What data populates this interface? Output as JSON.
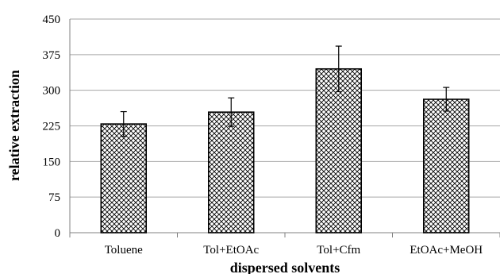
{
  "chart_data": {
    "type": "bar",
    "categories": [
      "Toluene",
      "Tol+EtOAc",
      "Tol+Cfm",
      "EtOAc+MeOH"
    ],
    "series": [
      {
        "values": [
          229,
          254,
          345,
          281
        ],
        "error": [
          26,
          30,
          48,
          25
        ]
      }
    ],
    "xlabel": "dispersed solvents",
    "ylabel": "relative extraction",
    "ylim": [
      0,
      450
    ],
    "yticks": [
      0,
      75,
      150,
      225,
      300,
      375,
      450
    ],
    "grid": true,
    "legend": "none",
    "bar_fill": "crosshatch",
    "colors": {
      "bar_stroke": "#000000",
      "grid": "#a6a6a6",
      "axis": "#808080"
    }
  }
}
